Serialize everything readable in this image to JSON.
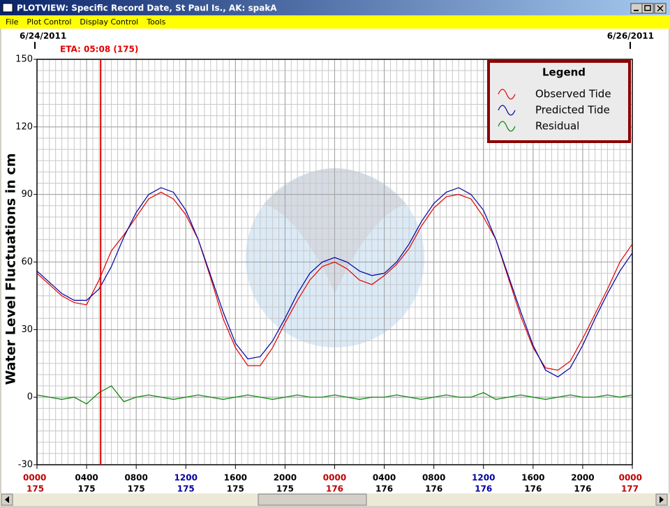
{
  "window": {
    "title": "PLOTVIEW: Specific Record Date, St Paul Is., AK: spakA",
    "menu": [
      "File",
      "Plot Control",
      "Display Control",
      "Tools"
    ]
  },
  "chart_data": {
    "type": "line",
    "ylabel": "Water Level Fluctuations in cm",
    "x": [
      0,
      1,
      2,
      3,
      4,
      5,
      6,
      7,
      8,
      9,
      10,
      11,
      12,
      13,
      14,
      15,
      16,
      17,
      18,
      19,
      20,
      21,
      22,
      23,
      24,
      25,
      26,
      27,
      28,
      29,
      30,
      31,
      32,
      33,
      34,
      35,
      36,
      37,
      38,
      39,
      40,
      41,
      42,
      43,
      44,
      45,
      46,
      47,
      48
    ],
    "series": [
      {
        "name": "Observed Tide",
        "color": "#e00000",
        "values": [
          55,
          50,
          45,
          42,
          41,
          52,
          65,
          72,
          80,
          88,
          91,
          88,
          81,
          70,
          53,
          35,
          22,
          14,
          14,
          22,
          33,
          43,
          52,
          58,
          60,
          57,
          52,
          50,
          54,
          59,
          66,
          76,
          84,
          89,
          90,
          88,
          80,
          70,
          53,
          36,
          22,
          13,
          12,
          16,
          26,
          37,
          48,
          60,
          68
        ]
      },
      {
        "name": "Predicted Tide",
        "color": "#0000a0",
        "values": [
          56,
          51,
          46,
          43,
          43,
          48,
          58,
          71,
          82,
          90,
          93,
          91,
          83,
          70,
          54,
          38,
          24,
          17,
          18,
          25,
          35,
          46,
          55,
          60,
          62,
          60,
          56,
          54,
          55,
          60,
          68,
          78,
          86,
          91,
          93,
          90,
          83,
          70,
          54,
          38,
          23,
          12,
          9,
          13,
          23,
          35,
          46,
          56,
          64
        ]
      },
      {
        "name": "Residual",
        "color": "#008000",
        "values": [
          1,
          0,
          -1,
          0,
          -3,
          2,
          5,
          -2,
          0,
          1,
          0,
          -1,
          0,
          1,
          0,
          -1,
          0,
          1,
          0,
          -1,
          0,
          1,
          0,
          0,
          1,
          0,
          -1,
          0,
          0,
          1,
          0,
          -1,
          0,
          1,
          0,
          0,
          2,
          -1,
          0,
          1,
          0,
          -1,
          0,
          1,
          0,
          0,
          1,
          0,
          1
        ]
      }
    ],
    "xlim": [
      0,
      48
    ],
    "ylim": [
      -30,
      150
    ],
    "yticks": [
      -30,
      0,
      30,
      60,
      90,
      120,
      150
    ],
    "xticks": [
      {
        "value": 0,
        "label": "0000",
        "day": "175",
        "color": "#c00000"
      },
      {
        "value": 4,
        "label": "0400",
        "day": "175",
        "color": "#000000"
      },
      {
        "value": 8,
        "label": "0800",
        "day": "175",
        "color": "#000000"
      },
      {
        "value": 12,
        "label": "1200",
        "day": "175",
        "color": "#0000a0"
      },
      {
        "value": 16,
        "label": "1600",
        "day": "175",
        "color": "#000000"
      },
      {
        "value": 20,
        "label": "2000",
        "day": "175",
        "color": "#000000"
      },
      {
        "value": 24,
        "label": "0000",
        "day": "176",
        "color": "#c00000"
      },
      {
        "value": 28,
        "label": "0400",
        "day": "176",
        "color": "#000000"
      },
      {
        "value": 32,
        "label": "0800",
        "day": "176",
        "color": "#000000"
      },
      {
        "value": 36,
        "label": "1200",
        "day": "176",
        "color": "#0000a0"
      },
      {
        "value": 40,
        "label": "1600",
        "day": "176",
        "color": "#000000"
      },
      {
        "value": 44,
        "label": "2000",
        "day": "176",
        "color": "#000000"
      },
      {
        "value": 48,
        "label": "0000",
        "day": "177",
        "color": "#c00000"
      }
    ],
    "date_labels": [
      {
        "value": 0,
        "label": "6/24/2011"
      },
      {
        "value": 48,
        "label": "6/26/2011"
      }
    ],
    "annotation": {
      "text": "ETA: 05:08 (175)",
      "x": 5.133,
      "color": "#e00000"
    },
    "grid": true,
    "xgrid_step": 0.5,
    "ygrid_step": 5,
    "legend_title": "Legend",
    "legend": "top-right"
  }
}
